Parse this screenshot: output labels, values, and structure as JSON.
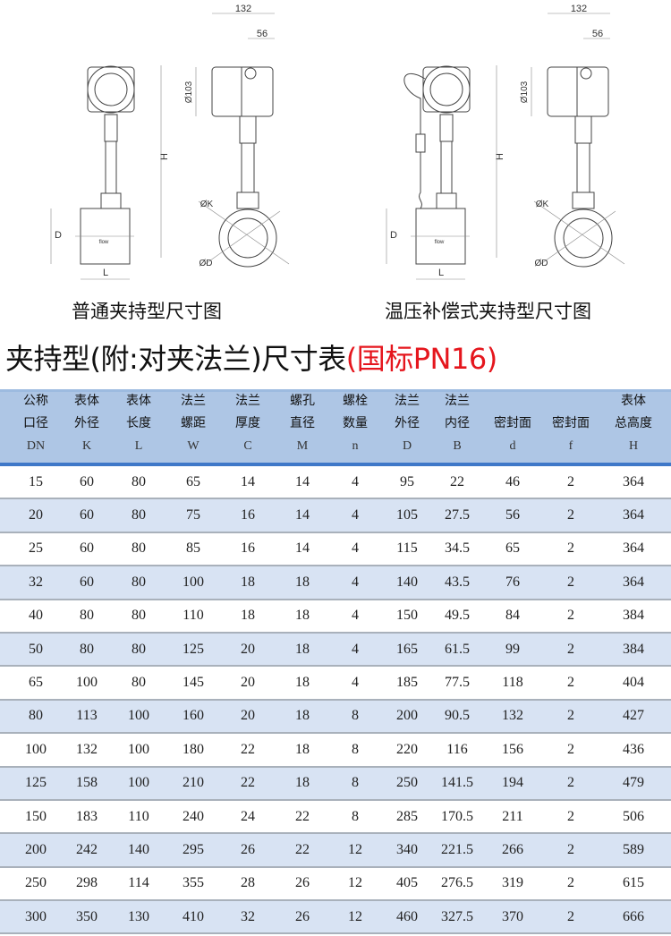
{
  "drawings": [
    {
      "caption": "普通夹持型尺寸图",
      "dims": {
        "width": "132",
        "offset": "56",
        "head_dia": "Ø103",
        "height": "H",
        "pipe_dia": "D",
        "length": "L",
        "k_dia": "ØK",
        "d_dia": "ØD"
      },
      "flow_label": "flow"
    },
    {
      "caption": "温压补偿式夹持型尺寸图",
      "dims": {
        "width": "132",
        "offset": "56",
        "head_dia": "Ø103",
        "height": "H",
        "pipe_dia": "D",
        "length": "L",
        "k_dia": "ØK",
        "d_dia": "ØD"
      },
      "flow_label": "flow"
    }
  ],
  "title": {
    "main": "夹持型(附:对夹法兰)尺寸表",
    "standard": "(国标PN16)",
    "standard_color": "#e5161d"
  },
  "table": {
    "header_color": "#aec6e5",
    "stripe_color": "#d8e3f3",
    "columns": [
      {
        "l1": "公称",
        "l2": "口径",
        "sym": "DN"
      },
      {
        "l1": "表体",
        "l2": "外径",
        "sym": "K"
      },
      {
        "l1": "表体",
        "l2": "长度",
        "sym": "L"
      },
      {
        "l1": "法兰",
        "l2": "螺距",
        "sym": "W"
      },
      {
        "l1": "法兰",
        "l2": "厚度",
        "sym": "C"
      },
      {
        "l1": "螺孔",
        "l2": "直径",
        "sym": "M"
      },
      {
        "l1": "螺栓",
        "l2": "数量",
        "sym": "n"
      },
      {
        "l1": "法兰",
        "l2": "外径",
        "sym": "D"
      },
      {
        "l1": "法兰",
        "l2": "内径",
        "sym": "B"
      },
      {
        "l1": "",
        "l2": "密封面",
        "sym": "d"
      },
      {
        "l1": "",
        "l2": "密封面",
        "sym": "f"
      },
      {
        "l1": "表体",
        "l2": "总高度",
        "sym": "H"
      }
    ],
    "rows": [
      [
        "15",
        "60",
        "80",
        "65",
        "14",
        "14",
        "4",
        "95",
        "22",
        "46",
        "2",
        "364"
      ],
      [
        "20",
        "60",
        "80",
        "75",
        "16",
        "14",
        "4",
        "105",
        "27.5",
        "56",
        "2",
        "364"
      ],
      [
        "25",
        "60",
        "80",
        "85",
        "16",
        "14",
        "4",
        "115",
        "34.5",
        "65",
        "2",
        "364"
      ],
      [
        "32",
        "60",
        "80",
        "100",
        "18",
        "18",
        "4",
        "140",
        "43.5",
        "76",
        "2",
        "364"
      ],
      [
        "40",
        "80",
        "80",
        "110",
        "18",
        "18",
        "4",
        "150",
        "49.5",
        "84",
        "2",
        "384"
      ],
      [
        "50",
        "80",
        "80",
        "125",
        "20",
        "18",
        "4",
        "165",
        "61.5",
        "99",
        "2",
        "384"
      ],
      [
        "65",
        "100",
        "80",
        "145",
        "20",
        "18",
        "4",
        "185",
        "77.5",
        "118",
        "2",
        "404"
      ],
      [
        "80",
        "113",
        "100",
        "160",
        "20",
        "18",
        "8",
        "200",
        "90.5",
        "132",
        "2",
        "427"
      ],
      [
        "100",
        "132",
        "100",
        "180",
        "22",
        "18",
        "8",
        "220",
        "116",
        "156",
        "2",
        "436"
      ],
      [
        "125",
        "158",
        "100",
        "210",
        "22",
        "18",
        "8",
        "250",
        "141.5",
        "194",
        "2",
        "479"
      ],
      [
        "150",
        "183",
        "110",
        "240",
        "24",
        "22",
        "8",
        "285",
        "170.5",
        "211",
        "2",
        "506"
      ],
      [
        "200",
        "242",
        "140",
        "295",
        "26",
        "22",
        "12",
        "340",
        "221.5",
        "266",
        "2",
        "589"
      ],
      [
        "250",
        "298",
        "114",
        "355",
        "28",
        "26",
        "12",
        "405",
        "276.5",
        "319",
        "2",
        "615"
      ],
      [
        "300",
        "350",
        "130",
        "410",
        "32",
        "26",
        "12",
        "460",
        "327.5",
        "370",
        "2",
        "666"
      ]
    ]
  }
}
